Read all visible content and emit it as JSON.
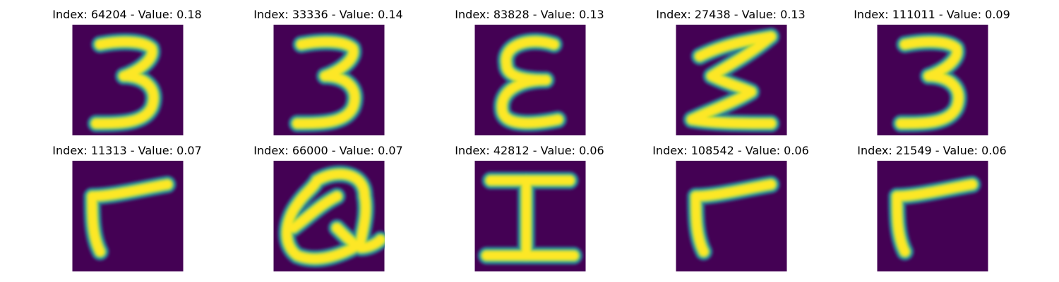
{
  "colors": {
    "background": "#440154",
    "stroke_core": "#fde725",
    "stroke_mid": "#a0da39",
    "stroke_edge": "#1f9e89",
    "stroke_outer": "#31688e",
    "title_text": "#000000"
  },
  "panels": [
    {
      "title": "Index: 64204 - Value: 0.18",
      "glyph": "three-glyph"
    },
    {
      "title": "Index: 33336 - Value: 0.14",
      "glyph": "three-glyph"
    },
    {
      "title": "Index: 83828 - Value: 0.13",
      "glyph": "epsilon-glyph"
    },
    {
      "title": "Index: 27438 - Value: 0.13",
      "glyph": "sigma-glyph"
    },
    {
      "title": "Index: 111011 - Value: 0.09",
      "glyph": "three-glyph"
    },
    {
      "title": "Index: 11313 - Value: 0.07",
      "glyph": "hook-glyph"
    },
    {
      "title": "Index: 66000 - Value: 0.07",
      "glyph": "q-glyph"
    },
    {
      "title": "Index: 42812 - Value: 0.06",
      "glyph": "i-beam-glyph"
    },
    {
      "title": "Index: 108542 - Value: 0.06",
      "glyph": "hook-glyph"
    },
    {
      "title": "Index: 21549 - Value: 0.06",
      "glyph": "hook-glyph"
    }
  ]
}
